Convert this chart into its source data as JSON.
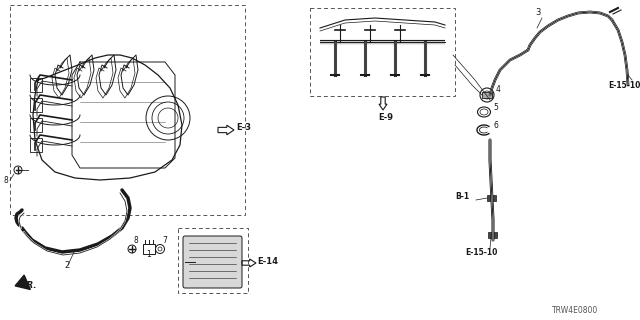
{
  "bg_color": "#ffffff",
  "line_color": "#1a1a1a",
  "gray_color": "#888888",
  "part_number": "TRW4E0800",
  "labels": {
    "E3": "E-3",
    "E9": "E-9",
    "E14": "E-14",
    "E1510a": "E-15-10",
    "E1510b": "E-15-10",
    "B1": "B-1",
    "FR": "FR.",
    "num1": "1",
    "num2": "2",
    "num3": "3",
    "num4": "4",
    "num5": "5",
    "num6": "6",
    "num7": "7",
    "num8a": "8",
    "num8b": "8"
  },
  "figsize": [
    6.4,
    3.2
  ],
  "dpi": 100
}
